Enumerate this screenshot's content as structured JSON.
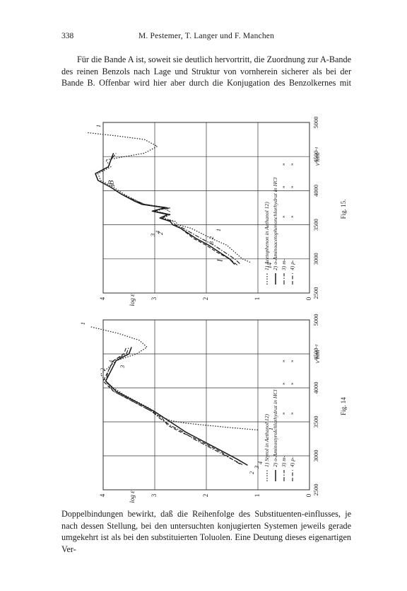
{
  "header": {
    "page_number": "338",
    "running_head": "M. Pestemer, T. Langer und F. Manchen"
  },
  "paragraph_top": "Für die Bande A ist, soweit sie deutlich hervortritt, die Zuordnung zur A-Bande des reinen Benzols nach Lage und Struktur von vornherein sicherer als bei der Bande B. Offenbar wird hier aber durch die Konjugation des Benzolkernes mit",
  "paragraph_bottom": "Doppelbindungen bewirkt, daß die Reihenfolge des Substituenten-einflusses, je nach dessen Stellung, bei den untersuchten konjugierten Systemen jeweils gerade umgekehrt ist als bei den substituierten Toluolen. Eine Deutung dieses eigenartigen Ver-",
  "figures": [
    {
      "caption": "Fig. 15.",
      "wavenumber_label": "ν'mm⁻¹",
      "logeps_label": "log ε",
      "wavenumber_ticks": [
        "2500",
        "3000",
        "3500",
        "4000",
        "4500",
        "5000"
      ],
      "logeps_ticks": [
        "0",
        "1",
        "2",
        "3",
        "4"
      ],
      "legend": [
        "1) Acetophenon in Aethanol 12)",
        "2) o-Aminoacetophenonchlorhydrat in HCl",
        "3) m-",
        "4) p-"
      ],
      "ditto_marks": [
        "»",
        "»"
      ],
      "band_labels": [
        "B",
        "A",
        "I"
      ],
      "curve_labels": [
        "1",
        "1",
        "2",
        "3",
        "4",
        "1",
        "2",
        "3",
        "14"
      ],
      "chart_data": {
        "type": "line",
        "x_label": "ν'mm⁻¹",
        "y_label": "log ε",
        "xlim": [
          2500,
          5000
        ],
        "ylim": [
          0,
          4
        ],
        "series": [
          {
            "name": "1) Acetophenon in Aethanol 12)",
            "x": [
              2950,
              3000,
              3100,
              3200,
              3300,
              3450,
              3500,
              3550,
              3600,
              3650,
              3700,
              3750,
              3800,
              3850,
              3950,
              4050,
              4150,
              4250,
              4350,
              4450,
              4550,
              4650,
              4750,
              4800,
              4850
            ],
            "y": [
              1.15,
              1.3,
              1.45,
              1.6,
              1.9,
              2.3,
              2.55,
              2.6,
              2.85,
              2.7,
              3.0,
              2.75,
              3.2,
              3.35,
              3.6,
              3.8,
              4.05,
              4.1,
              3.85,
              3.95,
              3.2,
              2.95,
              3.2,
              3.7,
              4.3
            ]
          },
          {
            "name": "2) o-Aminoacetophenonchlorhydrat in HCl",
            "x": [
              2920,
              3000,
              3100,
              3200,
              3300,
              3450,
              3500,
              3550,
              3600,
              3650,
              3700,
              3750,
              3800,
              3850,
              3950,
              4050,
              4150,
              4250,
              4350,
              4450,
              4550
            ],
            "y": [
              1.45,
              1.55,
              1.75,
              1.95,
              2.2,
              2.5,
              2.65,
              2.7,
              2.9,
              2.75,
              3.05,
              2.8,
              3.25,
              3.4,
              3.65,
              3.85,
              4.1,
              4.15,
              3.9,
              3.85,
              3.8
            ]
          },
          {
            "name": "3) m-",
            "x": [
              2930,
              3000,
              3100,
              3200,
              3300,
              3450,
              3500,
              3550,
              3600,
              3650,
              3700,
              3750,
              3800,
              3850,
              3950,
              4050,
              4150,
              4250,
              4350,
              4450,
              4550
            ],
            "y": [
              1.35,
              1.45,
              1.65,
              1.85,
              2.1,
              2.45,
              2.6,
              2.65,
              2.85,
              2.7,
              3.0,
              2.75,
              3.2,
              3.35,
              3.65,
              3.85,
              4.1,
              4.15,
              3.9,
              3.85,
              3.75
            ]
          },
          {
            "name": "4) p-",
            "x": [
              2910,
              3000,
              3100,
              3200,
              3300,
              3450,
              3500,
              3550,
              3600,
              3650,
              3700,
              3750,
              3800,
              3850,
              3950,
              4050,
              4150,
              4250,
              4350,
              4450,
              4550
            ],
            "y": [
              1.4,
              1.55,
              1.8,
              2.0,
              2.25,
              2.5,
              2.65,
              2.7,
              2.9,
              2.75,
              3.05,
              2.8,
              3.2,
              3.4,
              3.65,
              3.85,
              4.1,
              4.15,
              3.9,
              3.85,
              3.8
            ]
          }
        ]
      }
    },
    {
      "caption": "Fig. 14",
      "wavenumber_label": "ν'mm⁻¹",
      "logeps_label": "log ε",
      "wavenumber_ticks": [
        "2500",
        "3000",
        "3500",
        "4000",
        "4500",
        "5000"
      ],
      "logeps_ticks": [
        "0",
        "1",
        "2",
        "3",
        "4"
      ],
      "legend": [
        "1) Styrol in Aethanol 12)",
        "2) o-Aminostyrolchlorhydrat in HCl",
        "3) m-",
        "4) p-"
      ],
      "ditto_marks": [
        "»",
        "»"
      ],
      "band_labels": [],
      "curve_labels": [
        "1",
        "4",
        "2",
        "3",
        "1",
        "2",
        "3",
        "4"
      ],
      "chart_data": {
        "type": "line",
        "x_label": "ν'mm⁻¹",
        "y_label": "log ε",
        "xlim": [
          2500,
          5000
        ],
        "ylim": [
          0,
          4
        ],
        "series": [
          {
            "name": "1) Styrol in Aethanol 12)",
            "x": [
              3380,
              3420,
              3480,
              3520,
              3600,
              3700,
              3800,
              3900,
              4000,
              4100,
              4200,
              4300,
              4400,
              4500,
              4600,
              4700,
              4800,
              4900
            ],
            "y": [
              1.0,
              1.6,
              2.4,
              2.7,
              2.95,
              3.1,
              3.35,
              3.6,
              3.8,
              3.95,
              4.05,
              3.9,
              3.75,
              3.35,
              3.15,
              3.3,
              3.7,
              4.25
            ]
          },
          {
            "name": "2) o-Aminostyrolchlorhydrat in HCl",
            "x": [
              2860,
              2950,
              3050,
              3150,
              3250,
              3350,
              3450,
              3550,
              3650,
              3750,
              3850,
              3950,
              4100,
              4250,
              4400,
              4500,
              4600
            ],
            "y": [
              1.2,
              1.4,
              1.65,
              1.9,
              2.15,
              2.4,
              2.6,
              2.8,
              3.0,
              3.25,
              3.5,
              3.75,
              3.95,
              3.85,
              3.75,
              3.5,
              3.45
            ]
          },
          {
            "name": "3) m-",
            "x": [
              2880,
              2950,
              3050,
              3150,
              3250,
              3350,
              3450,
              3550,
              3650,
              3750,
              3850,
              3950,
              4100,
              4250,
              4400,
              4500,
              4600
            ],
            "y": [
              1.35,
              1.5,
              1.75,
              2.0,
              2.25,
              2.45,
              2.7,
              2.9,
              3.05,
              3.3,
              3.55,
              3.8,
              3.95,
              3.9,
              3.8,
              3.55,
              3.5
            ]
          },
          {
            "name": "4) p-",
            "x": [
              2870,
              2950,
              3050,
              3150,
              3250,
              3350,
              3450,
              3550,
              3650,
              3750,
              3850,
              3950,
              4100,
              4250,
              4400,
              4500,
              4600
            ],
            "y": [
              1.3,
              1.5,
              1.7,
              1.95,
              2.2,
              2.5,
              2.75,
              2.85,
              3.05,
              3.3,
              3.55,
              3.8,
              4.0,
              3.9,
              3.8,
              3.6,
              3.55
            ]
          }
        ]
      }
    }
  ]
}
